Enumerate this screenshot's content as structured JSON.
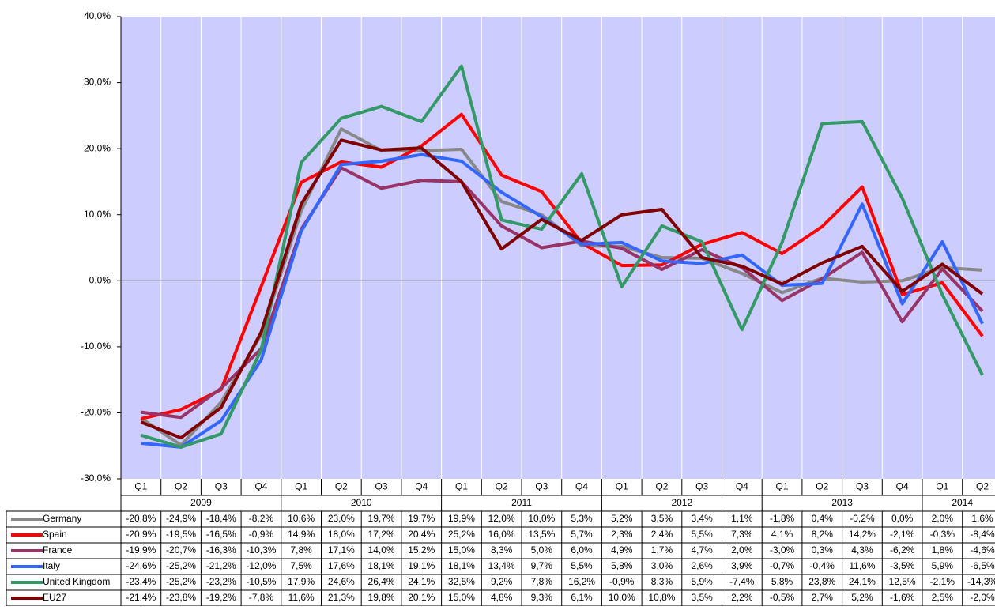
{
  "chart_data": {
    "type": "line",
    "categories": [
      "Q1",
      "Q2",
      "Q3",
      "Q4",
      "Q1",
      "Q2",
      "Q3",
      "Q4",
      "Q1",
      "Q2",
      "Q3",
      "Q4",
      "Q1",
      "Q2",
      "Q3",
      "Q4",
      "Q1",
      "Q2",
      "Q3",
      "Q4",
      "Q1",
      "Q2"
    ],
    "category_groups": [
      "2009",
      "2009",
      "2009",
      "2009",
      "2010",
      "2010",
      "2010",
      "2010",
      "2011",
      "2011",
      "2011",
      "2011",
      "2012",
      "2012",
      "2012",
      "2012",
      "2013",
      "2013",
      "2013",
      "2013",
      "2014",
      "2014"
    ],
    "ylim": [
      -30,
      40
    ],
    "yticks": [
      {
        "value": -30,
        "label": "-30,0%"
      },
      {
        "value": -20,
        "label": "-20,0%"
      },
      {
        "value": -10,
        "label": "-10,0%"
      },
      {
        "value": 0,
        "label": "0,0%"
      },
      {
        "value": 10,
        "label": "10,0%"
      },
      {
        "value": 20,
        "label": "20,0%"
      },
      {
        "value": 30,
        "label": "30,0%"
      },
      {
        "value": 40,
        "label": "40,0%"
      }
    ],
    "plot_background": "#ccccff",
    "series": [
      {
        "name": "Germany",
        "color": "#888888",
        "values": [
          -20.8,
          -24.9,
          -18.4,
          -8.2,
          10.6,
          23.0,
          19.7,
          19.7,
          19.9,
          12.0,
          10.0,
          5.3,
          5.2,
          3.5,
          3.4,
          1.1,
          -1.8,
          0.4,
          -0.2,
          0.0,
          2.0,
          1.6
        ],
        "value_labels": [
          "-20,8%",
          "-24,9%",
          "-18,4%",
          "-8,2%",
          "10,6%",
          "23,0%",
          "19,7%",
          "19,7%",
          "19,9%",
          "12,0%",
          "10,0%",
          "5,3%",
          "5,2%",
          "3,5%",
          "3,4%",
          "1,1%",
          "-1,8%",
          "0,4%",
          "-0,2%",
          "0,0%",
          "2,0%",
          "1,6%"
        ]
      },
      {
        "name": "Spain",
        "color": "#ff0000",
        "values": [
          -20.9,
          -19.5,
          -16.5,
          -0.9,
          14.9,
          18.0,
          17.2,
          20.4,
          25.2,
          16.0,
          13.5,
          5.7,
          2.3,
          2.4,
          5.5,
          7.3,
          4.1,
          8.2,
          14.2,
          -2.1,
          -0.3,
          -8.4
        ],
        "value_labels": [
          "-20,9%",
          "-19,5%",
          "-16,5%",
          "-0,9%",
          "14,9%",
          "18,0%",
          "17,2%",
          "20,4%",
          "25,2%",
          "16,0%",
          "13,5%",
          "5,7%",
          "2,3%",
          "2,4%",
          "5,5%",
          "7,3%",
          "4,1%",
          "8,2%",
          "14,2%",
          "-2,1%",
          "-0,3%",
          "-8,4%"
        ]
      },
      {
        "name": "France",
        "color": "#993366",
        "values": [
          -19.9,
          -20.7,
          -16.3,
          -10.3,
          7.8,
          17.1,
          14.0,
          15.2,
          15.0,
          8.3,
          5.0,
          6.0,
          4.9,
          1.7,
          4.7,
          2.0,
          -3.0,
          0.3,
          4.3,
          -6.2,
          1.8,
          -4.6
        ],
        "value_labels": [
          "-19,9%",
          "-20,7%",
          "-16,3%",
          "-10,3%",
          "7,8%",
          "17,1%",
          "14,0%",
          "15,2%",
          "15,0%",
          "8,3%",
          "5,0%",
          "6,0%",
          "4,9%",
          "1,7%",
          "4,7%",
          "2,0%",
          "-3,0%",
          "0,3%",
          "4,3%",
          "-6,2%",
          "1,8%",
          "-4,6%"
        ]
      },
      {
        "name": "Italy",
        "color": "#3366ff",
        "values": [
          -24.6,
          -25.2,
          -21.2,
          -12.0,
          7.5,
          17.6,
          18.1,
          19.1,
          18.1,
          13.4,
          9.7,
          5.5,
          5.8,
          3.0,
          2.6,
          3.9,
          -0.7,
          -0.4,
          11.6,
          -3.5,
          5.9,
          -6.5
        ],
        "value_labels": [
          "-24,6%",
          "-25,2%",
          "-21,2%",
          "-12,0%",
          "7,5%",
          "17,6%",
          "18,1%",
          "19,1%",
          "18,1%",
          "13,4%",
          "9,7%",
          "5,5%",
          "5,8%",
          "3,0%",
          "2,6%",
          "3,9%",
          "-0,7%",
          "-0,4%",
          "11,6%",
          "-3,5%",
          "5,9%",
          "-6,5%"
        ]
      },
      {
        "name": "United Kingdom",
        "color": "#339966",
        "values": [
          -23.4,
          -25.2,
          -23.2,
          -10.5,
          17.9,
          24.6,
          26.4,
          24.1,
          32.5,
          9.2,
          7.8,
          16.2,
          -0.9,
          8.3,
          5.9,
          -7.4,
          5.8,
          23.8,
          24.1,
          12.5,
          -2.1,
          -14.3
        ],
        "value_labels": [
          "-23,4%",
          "-25,2%",
          "-23,2%",
          "-10,5%",
          "17,9%",
          "24,6%",
          "26,4%",
          "24,1%",
          "32,5%",
          "9,2%",
          "7,8%",
          "16,2%",
          "-0,9%",
          "8,3%",
          "5,9%",
          "-7,4%",
          "5,8%",
          "23,8%",
          "24,1%",
          "12,5%",
          "-2,1%",
          "-14,3%"
        ]
      },
      {
        "name": "EU27",
        "color": "#800000",
        "values": [
          -21.4,
          -23.8,
          -19.2,
          -7.8,
          11.6,
          21.3,
          19.8,
          20.1,
          15.0,
          4.8,
          9.3,
          6.1,
          10.0,
          10.8,
          3.5,
          2.2,
          -0.5,
          2.7,
          5.2,
          -1.6,
          2.5,
          -2.0
        ],
        "value_labels": [
          "-21,4%",
          "-23,8%",
          "-19,2%",
          "-7,8%",
          "11,6%",
          "21,3%",
          "19,8%",
          "20,1%",
          "15,0%",
          "4,8%",
          "9,3%",
          "6,1%",
          "10,0%",
          "10,8%",
          "3,5%",
          "2,2%",
          "-0,5%",
          "2,7%",
          "5,2%",
          "-1,6%",
          "2,5%",
          "-2,0%"
        ]
      }
    ]
  }
}
